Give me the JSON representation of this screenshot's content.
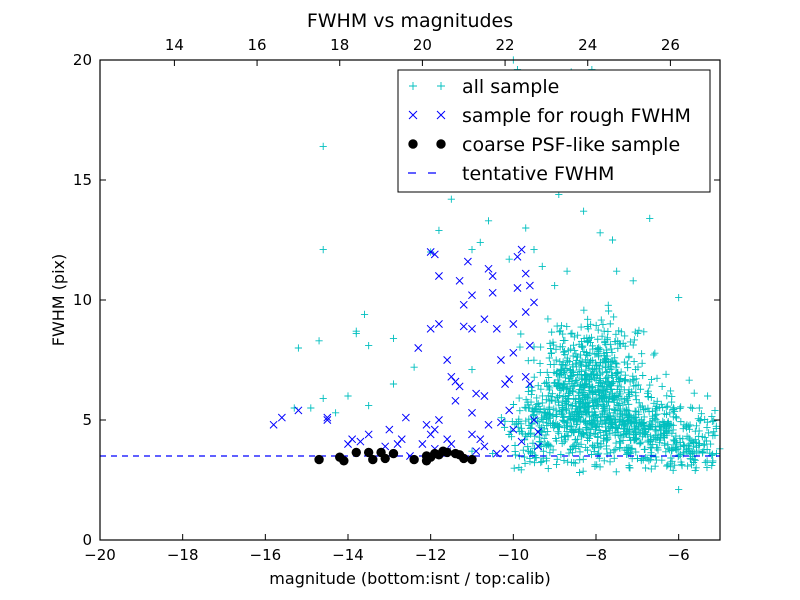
{
  "chart_data": {
    "type": "scatter",
    "title": "FWHM vs magnitudes",
    "xlabel": "magnitude (bottom:isnt / top:calib)",
    "ylabel": "FWHM (pix)",
    "xlim": [
      -20,
      -5
    ],
    "ylim": [
      0,
      20
    ],
    "x_ticks": [
      -20,
      -18,
      -16,
      -14,
      -12,
      -10,
      -8,
      -6
    ],
    "x_tick_labels": [
      "−20",
      "−18",
      "−16",
      "−14",
      "−12",
      "−10",
      "−8",
      "−6"
    ],
    "y_ticks": [
      0,
      5,
      10,
      15,
      20
    ],
    "y_tick_labels": [
      "0",
      "5",
      "10",
      "15",
      "20"
    ],
    "top_axis": {
      "offset": 32.2,
      "ticks": [
        14,
        16,
        18,
        20,
        22,
        24,
        26
      ],
      "tick_labels": [
        "14",
        "16",
        "18",
        "20",
        "22",
        "24",
        "26"
      ]
    },
    "grid": false,
    "legend_position": "top-right",
    "colors": {
      "all_sample": "#00bfbf",
      "rough_sample": "#0000ff",
      "psf_sample": "#000000",
      "tentative": "#0000ff"
    },
    "tentative_fwhm": 3.5,
    "series": [
      {
        "name": "all sample",
        "marker": "plus",
        "color": "#00bfbf",
        "points": [
          [
            -14.6,
            16.4
          ],
          [
            -14.6,
            12.1
          ],
          [
            -14.7,
            8.3
          ],
          [
            -15.2,
            8.0
          ],
          [
            -13.8,
            8.7
          ],
          [
            -13.8,
            8.6
          ],
          [
            -13.6,
            9.4
          ],
          [
            -13.5,
            8.1
          ],
          [
            -12.9,
            8.4
          ],
          [
            -12.9,
            6.5
          ],
          [
            -14.0,
            6.0
          ],
          [
            -14.6,
            5.9
          ],
          [
            -14.9,
            5.5
          ],
          [
            -15.3,
            5.5
          ],
          [
            -14.3,
            5.3
          ],
          [
            -13.5,
            5.6
          ],
          [
            -12.0,
            12.0
          ],
          [
            -11.0,
            12.1
          ],
          [
            -11.5,
            14.2
          ],
          [
            -11.8,
            12.9
          ],
          [
            -12.4,
            7.2
          ],
          [
            -11.0,
            7.1
          ],
          [
            -10.6,
            13.3
          ],
          [
            -10.3,
            15.5
          ],
          [
            -10.0,
            20.0
          ],
          [
            -9.9,
            19.6
          ],
          [
            -9.8,
            16.5
          ],
          [
            -9.7,
            13.0
          ],
          [
            -9.2,
            14.7
          ],
          [
            -8.5,
            16.5
          ],
          [
            -8.2,
            17.1
          ],
          [
            -7.8,
            17.6
          ],
          [
            -7.4,
            15.6
          ],
          [
            -7.0,
            15.1
          ],
          [
            -6.7,
            13.4
          ],
          [
            -6.0,
            10.1
          ],
          [
            -8.1,
            19.6
          ],
          [
            -8.6,
            19.5
          ],
          [
            -8.9,
            14.4
          ],
          [
            -8.3,
            13.7
          ],
          [
            -7.9,
            12.8
          ],
          [
            -7.6,
            12.5
          ],
          [
            -7.5,
            11.2
          ],
          [
            -7.1,
            10.8
          ],
          [
            -9.5,
            12.1
          ],
          [
            -9.3,
            11.4
          ],
          [
            -10.1,
            11.7
          ],
          [
            -10.8,
            12.4
          ],
          [
            -9.0,
            10.6
          ],
          [
            -8.7,
            11.2
          ],
          [
            -5.3,
            6.0
          ],
          [
            -5.5,
            5.5
          ],
          [
            -6.4,
            6.4
          ],
          [
            -5.8,
            4.8
          ],
          [
            -6.2,
            3.2
          ],
          [
            -6.0,
            2.1
          ],
          [
            -5.2,
            3.1
          ],
          [
            -5.6,
            2.9
          ],
          [
            -6.8,
            3.0
          ],
          [
            -7.2,
            3.1
          ],
          [
            -7.8,
            3.3
          ],
          [
            -8.5,
            3.2
          ],
          [
            -9.2,
            3.3
          ],
          [
            -9.6,
            3.4
          ],
          [
            -10.5,
            3.6
          ],
          [
            -11.0,
            3.7
          ]
        ],
        "clusters": [
          {
            "cx": -8.0,
            "cy": 6.5,
            "sx": 0.55,
            "sy": 1.3,
            "n": 520,
            "seed": 7
          },
          {
            "cx": -7.4,
            "cy": 4.8,
            "sx": 0.75,
            "sy": 0.7,
            "n": 320,
            "seed": 13
          },
          {
            "cx": -8.9,
            "cy": 5.6,
            "sx": 0.45,
            "sy": 1.4,
            "n": 200,
            "seed": 21
          },
          {
            "cx": -6.4,
            "cy": 4.3,
            "sx": 0.65,
            "sy": 0.7,
            "n": 170,
            "seed": 33
          },
          {
            "cx": -9.5,
            "cy": 4.6,
            "sx": 0.3,
            "sy": 0.9,
            "n": 90,
            "seed": 41
          },
          {
            "cx": -5.6,
            "cy": 3.7,
            "sx": 0.4,
            "sy": 0.6,
            "n": 70,
            "seed": 57
          }
        ]
      },
      {
        "name": "sample for rough FWHM",
        "marker": "x",
        "color": "#0000ff",
        "points": [
          [
            -15.8,
            4.8
          ],
          [
            -15.6,
            5.1
          ],
          [
            -15.2,
            5.4
          ],
          [
            -14.5,
            5.1
          ],
          [
            -14.5,
            5.0
          ],
          [
            -14.0,
            4.0
          ],
          [
            -13.9,
            4.2
          ],
          [
            -13.7,
            4.1
          ],
          [
            -13.5,
            4.4
          ],
          [
            -13.1,
            3.9
          ],
          [
            -13.0,
            4.6
          ],
          [
            -12.7,
            4.2
          ],
          [
            -12.6,
            5.1
          ],
          [
            -12.5,
            3.5
          ],
          [
            -12.3,
            8.0
          ],
          [
            -12.2,
            4.0
          ],
          [
            -12.0,
            4.4
          ],
          [
            -11.9,
            4.6
          ],
          [
            -11.8,
            5.0
          ],
          [
            -11.6,
            4.2
          ],
          [
            -11.5,
            4.0
          ],
          [
            -12.0,
            8.8
          ],
          [
            -12.0,
            12.0
          ],
          [
            -11.9,
            11.9
          ],
          [
            -11.8,
            11.0
          ],
          [
            -11.8,
            9.0
          ],
          [
            -11.6,
            7.5
          ],
          [
            -11.5,
            6.8
          ],
          [
            -11.4,
            6.6
          ],
          [
            -11.3,
            6.4
          ],
          [
            -11.2,
            8.9
          ],
          [
            -11.2,
            9.8
          ],
          [
            -11.3,
            10.8
          ],
          [
            -11.1,
            11.6
          ],
          [
            -11.0,
            10.2
          ],
          [
            -11.0,
            8.8
          ],
          [
            -11.0,
            5.3
          ],
          [
            -11.0,
            4.4
          ],
          [
            -10.9,
            3.7
          ],
          [
            -10.8,
            4.2
          ],
          [
            -10.7,
            6.0
          ],
          [
            -10.7,
            9.2
          ],
          [
            -10.6,
            11.3
          ],
          [
            -10.5,
            11.0
          ],
          [
            -10.5,
            10.3
          ],
          [
            -10.4,
            8.8
          ],
          [
            -10.3,
            7.5
          ],
          [
            -10.3,
            4.9
          ],
          [
            -10.2,
            3.8
          ],
          [
            -10.1,
            5.4
          ],
          [
            -10.1,
            6.7
          ],
          [
            -10.0,
            7.8
          ],
          [
            -10.0,
            9.0
          ],
          [
            -9.9,
            10.5
          ],
          [
            -9.9,
            11.8
          ],
          [
            -9.8,
            12.1
          ],
          [
            -9.7,
            11.1
          ],
          [
            -9.7,
            9.5
          ],
          [
            -9.6,
            8.1
          ],
          [
            -9.6,
            6.5
          ],
          [
            -9.5,
            5.0
          ],
          [
            -9.4,
            3.9
          ],
          [
            -9.4,
            4.5
          ],
          [
            -9.5,
            9.9
          ],
          [
            -9.6,
            10.6
          ],
          [
            -10.4,
            3.6
          ],
          [
            -10.7,
            3.9
          ],
          [
            -11.6,
            3.7
          ],
          [
            -11.9,
            3.8
          ],
          [
            -12.8,
            4.0
          ],
          [
            -10.2,
            6.5
          ],
          [
            -10.0,
            4.6
          ],
          [
            -9.8,
            4.1
          ],
          [
            -9.7,
            6.8
          ],
          [
            -10.6,
            4.8
          ],
          [
            -10.9,
            6.1
          ],
          [
            -11.4,
            5.8
          ],
          [
            -12.1,
            4.8
          ]
        ]
      },
      {
        "name": "coarse PSF-like sample",
        "marker": "circle",
        "color": "#000000",
        "points": [
          [
            -14.7,
            3.35
          ],
          [
            -14.2,
            3.45
          ],
          [
            -14.1,
            3.3
          ],
          [
            -13.8,
            3.65
          ],
          [
            -13.5,
            3.65
          ],
          [
            -13.4,
            3.35
          ],
          [
            -13.2,
            3.65
          ],
          [
            -13.1,
            3.4
          ],
          [
            -12.9,
            3.6
          ],
          [
            -12.4,
            3.35
          ],
          [
            -12.1,
            3.3
          ],
          [
            -12.1,
            3.5
          ],
          [
            -12.0,
            3.45
          ],
          [
            -11.9,
            3.6
          ],
          [
            -11.8,
            3.55
          ],
          [
            -11.7,
            3.7
          ],
          [
            -11.6,
            3.65
          ],
          [
            -11.4,
            3.6
          ],
          [
            -11.3,
            3.55
          ],
          [
            -11.2,
            3.4
          ],
          [
            -11.0,
            3.35
          ]
        ]
      },
      {
        "name": "tentative FWHM",
        "marker": "dashed-line",
        "color": "#0000ff"
      }
    ]
  }
}
